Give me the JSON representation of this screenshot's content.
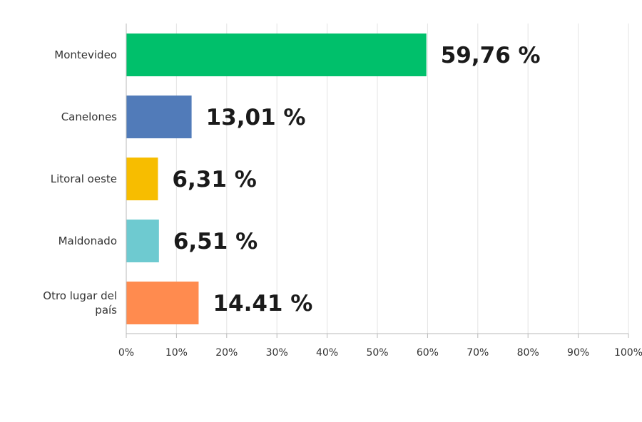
{
  "chart_data": {
    "type": "bar",
    "orientation": "horizontal",
    "categories": [
      "Montevideo",
      "Canelones",
      "Litoral oeste",
      "Maldonado",
      "Otro lugar del país"
    ],
    "category_lines": [
      [
        "Montevideo"
      ],
      [
        "Canelones"
      ],
      [
        "Litoral oeste"
      ],
      [
        "Maldonado"
      ],
      [
        "Otro lugar del",
        "país"
      ]
    ],
    "values": [
      59.76,
      13.01,
      6.31,
      6.51,
      14.41
    ],
    "value_labels": [
      "59,76 %",
      "13,01 %",
      "6,31 %",
      "6,51 %",
      "14.41 %"
    ],
    "colors": [
      "#00c06b",
      "#517bb9",
      "#f7bd00",
      "#6ecad0",
      "#ff8b4f"
    ],
    "xlim": [
      0,
      100
    ],
    "ticks": [
      0,
      10,
      20,
      30,
      40,
      50,
      60,
      70,
      80,
      90,
      100
    ],
    "tick_labels": [
      "0%",
      "10%",
      "20%",
      "30%",
      "40%",
      "50%",
      "60%",
      "70%",
      "80%",
      "90%",
      "100%"
    ],
    "grid": true,
    "legend": "none"
  }
}
